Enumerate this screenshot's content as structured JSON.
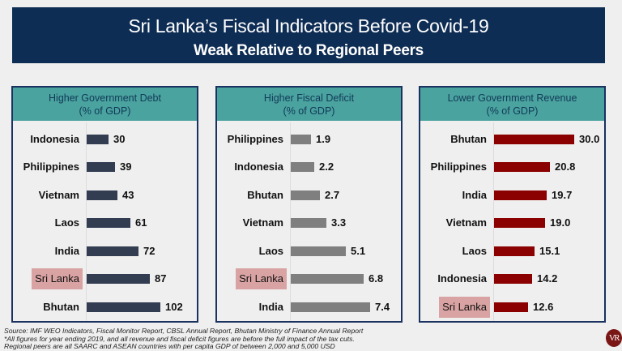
{
  "header": {
    "title": "Sri Lanka’s Fiscal Indicators Before Covid-19",
    "subtitle": "Weak Relative to Regional Peers"
  },
  "colors": {
    "header_bg": "#0e2d54",
    "panel_header_bg": "#4aa39e",
    "highlight_bg": "#d9a3a3",
    "debt_bar": "#323d52",
    "deficit_bar": "#7f7f7f",
    "revenue_bar": "#8b0000"
  },
  "chart_data": [
    {
      "type": "bar",
      "orientation": "horizontal",
      "title": "Higher Government Debt",
      "subtitle": "(% of GDP)",
      "categories": [
        "Indonesia",
        "Philippines",
        "Vietnam",
        "Laos",
        "India",
        "Sri Lanka",
        "Bhutan"
      ],
      "values": [
        30,
        39,
        43,
        61,
        72,
        87,
        102
      ],
      "labels": [
        "30",
        "39",
        "43",
        "61",
        "72",
        "87",
        "102"
      ],
      "highlight": "Sri Lanka",
      "xlim": [
        0,
        102
      ]
    },
    {
      "type": "bar",
      "orientation": "horizontal",
      "title": "Higher Fiscal Deficit",
      "subtitle": "(% of GDP)",
      "categories": [
        "Philippines",
        "Indonesia",
        "Bhutan",
        "Vietnam",
        "Laos",
        "Sri Lanka",
        "India"
      ],
      "values": [
        1.9,
        2.2,
        2.7,
        3.3,
        5.1,
        6.8,
        7.4
      ],
      "labels": [
        "1.9",
        "2.2",
        "2.7",
        "3.3",
        "5.1",
        "6.8",
        "7.4"
      ],
      "highlight": "Sri Lanka",
      "xlim": [
        0,
        7.4
      ]
    },
    {
      "type": "bar",
      "orientation": "horizontal",
      "title": "Lower Government Revenue",
      "subtitle": "(% of GDP)",
      "categories": [
        "Bhutan",
        "Philippines",
        "India",
        "Vietnam",
        "Laos",
        "Indonesia",
        "Sri Lanka"
      ],
      "values": [
        30.0,
        20.8,
        19.7,
        19.0,
        15.1,
        14.2,
        12.6
      ],
      "labels": [
        "30.0",
        "20.8",
        "19.7",
        "19.0",
        "15.1",
        "14.2",
        "12.6"
      ],
      "highlight": "Sri Lanka",
      "xlim": [
        0,
        30.0
      ]
    }
  ],
  "footnotes": [
    "Source: IMF WEO Indicators, Fiscal Monitor Report, CBSL Annual Report, Bhutan Ministry of Finance Annual Report",
    "*All figures for year ending 2019, and all revenue and fiscal deficit figures are before the full impact of the tax cuts.",
    "Regional peers are all SAARC and ASEAN countries with per capita GDP of between 2,000 and 5,000 USD"
  ],
  "logo": {
    "text": "VR",
    "icon": "vr-logo-icon"
  }
}
